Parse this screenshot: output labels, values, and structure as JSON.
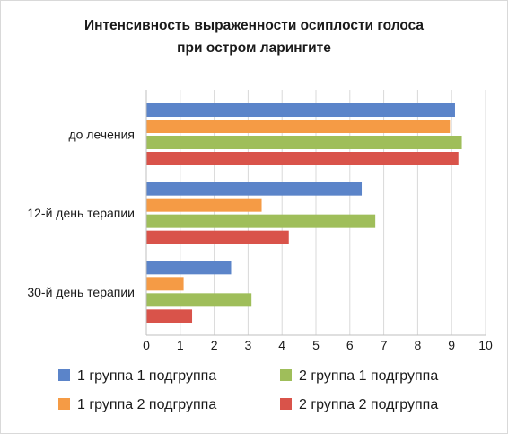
{
  "chart_data": {
    "type": "bar",
    "orientation": "horizontal",
    "title": "Интенсивность выраженности осиплости голоса при остром ларингите",
    "title_lines": [
      "Интенсивность выраженности осиплости голоса",
      "при остром ларингите"
    ],
    "categories": [
      "до лечения",
      "12-й день терапии",
      "30-й день терапии"
    ],
    "series": [
      {
        "name": "1 группа 1 подгруппа",
        "color": "#5b84c9",
        "values": [
          9.1,
          6.35,
          2.5
        ]
      },
      {
        "name": "1 группа 2 подгруппа",
        "color": "#f59b45",
        "values": [
          8.95,
          3.4,
          1.1
        ]
      },
      {
        "name": "2 группа 1 подгруппа",
        "color": "#9fbe5a",
        "values": [
          9.3,
          6.75,
          3.1
        ]
      },
      {
        "name": "2 группа 2 подгруппа",
        "color": "#d9534a",
        "values": [
          9.2,
          4.2,
          1.35
        ]
      }
    ],
    "xlim": [
      0,
      10
    ],
    "xticks": [
      "0",
      "1",
      "2",
      "3",
      "4",
      "5",
      "6",
      "7",
      "8",
      "9",
      "10"
    ],
    "grid": true,
    "legend_position": "bottom"
  }
}
